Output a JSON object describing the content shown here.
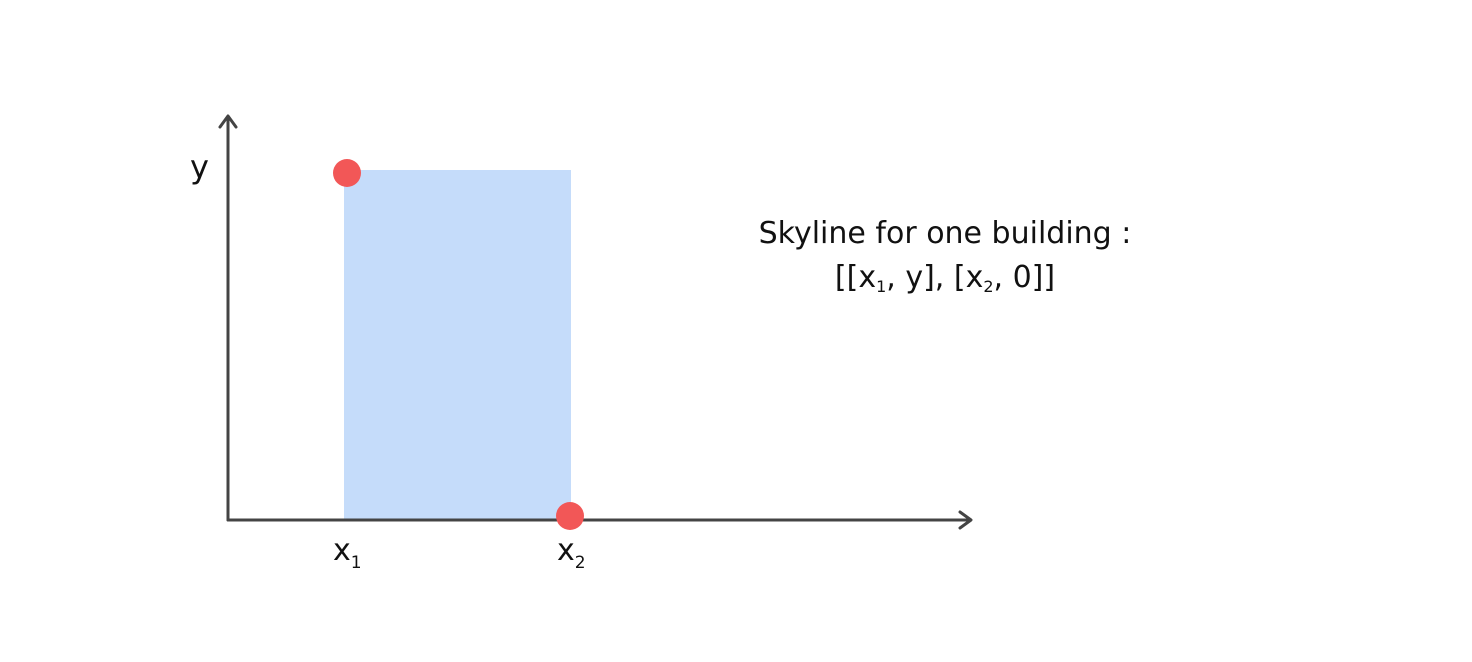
{
  "colors": {
    "axis": "#444444",
    "building_fill": "#c5dcfa",
    "point": "#f25757",
    "text": "#111111"
  },
  "axes": {
    "y_label": "y",
    "x1_label": "x",
    "x1_sub": "1",
    "x2_label": "x",
    "x2_sub": "2"
  },
  "caption": {
    "line1": "Skyline for one building :",
    "line2": {
      "open": "[[x",
      "sub1": "1",
      "mid": ", y], [x",
      "sub2": "2",
      "close": ", 0]]"
    }
  },
  "icons": {
    "x_arrow": "arrow-right-icon",
    "y_arrow": "arrow-up-icon"
  }
}
